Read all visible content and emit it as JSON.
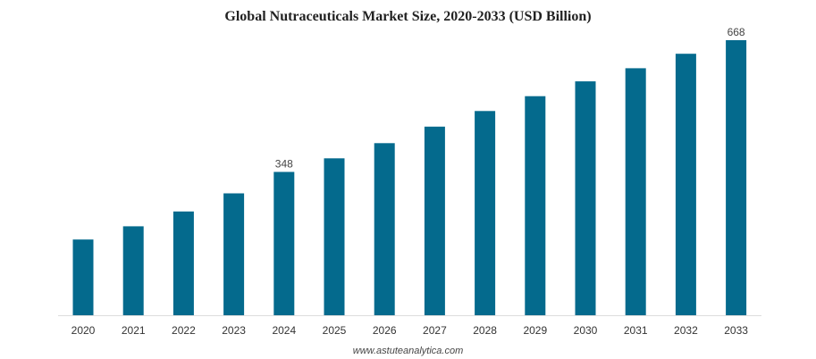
{
  "chart_data": {
    "type": "bar",
    "title": "Global Nutraceuticals Market Size, 2020-2033 (USD Billion)",
    "categories": [
      "2020",
      "2021",
      "2022",
      "2023",
      "2024",
      "2025",
      "2026",
      "2027",
      "2028",
      "2029",
      "2030",
      "2031",
      "2032",
      "2033"
    ],
    "values": [
      184,
      216,
      252,
      296,
      348,
      381,
      418,
      458,
      496,
      532,
      568,
      600,
      635,
      668
    ],
    "data_labels": {
      "4": "348",
      "13": "668"
    },
    "xlabel": "",
    "ylabel": "",
    "ylim": [
      0,
      668
    ],
    "grid": false,
    "bar_color": "#046a8d",
    "source": "www.astuteanalytica.com"
  }
}
